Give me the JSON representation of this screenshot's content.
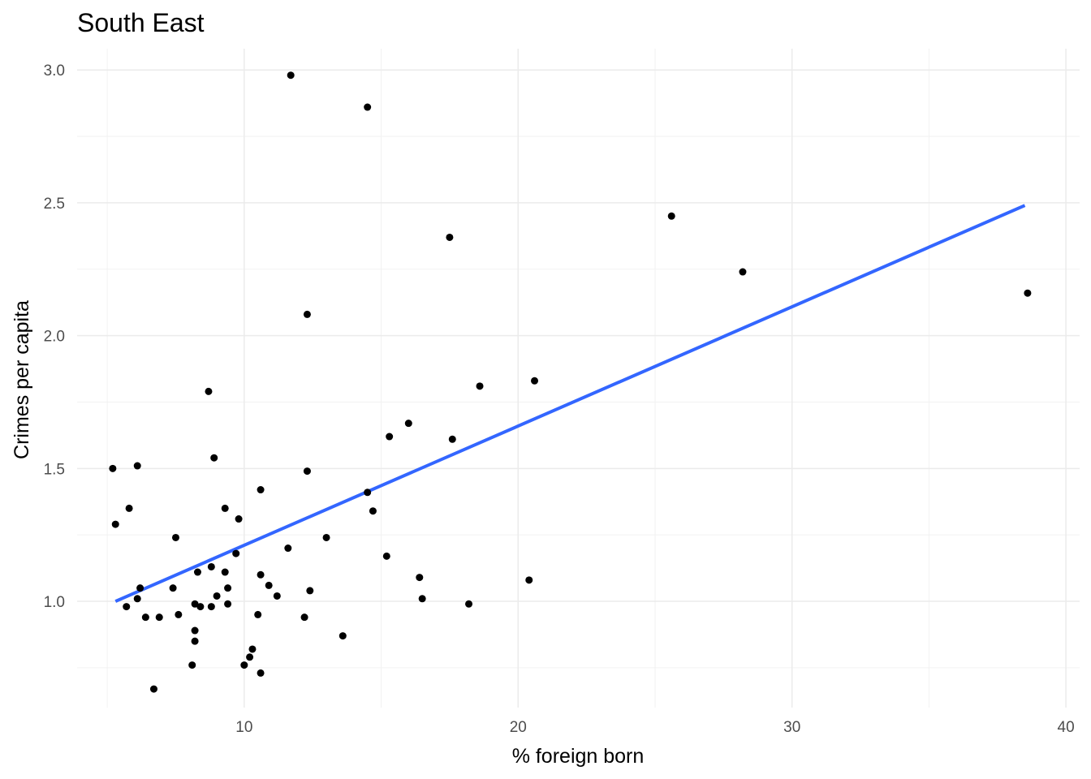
{
  "chart_data": {
    "type": "scatter",
    "title": "South East",
    "xlabel": "% foreign born",
    "ylabel": "Crimes per capita",
    "xlim": [
      3.9,
      40.5
    ],
    "ylim": [
      0.6,
      3.08
    ],
    "x_ticks": [
      10,
      20,
      30,
      40
    ],
    "y_ticks": [
      1.0,
      1.5,
      2.0,
      2.5,
      3.0
    ],
    "x_tick_labels": [
      "10",
      "20",
      "30",
      "40"
    ],
    "y_tick_labels": [
      "1.0",
      "1.5",
      "2.0",
      "2.5",
      "3.0"
    ],
    "grid": true,
    "point_color": "#000000",
    "trend_color": "#3366FF",
    "trend_line": [
      {
        "x": 5.3,
        "y": 1.0
      },
      {
        "x": 38.5,
        "y": 2.49
      }
    ],
    "points": [
      {
        "x": 11.7,
        "y": 2.98
      },
      {
        "x": 14.5,
        "y": 2.86
      },
      {
        "x": 17.5,
        "y": 2.37
      },
      {
        "x": 25.6,
        "y": 2.45
      },
      {
        "x": 28.2,
        "y": 2.24
      },
      {
        "x": 38.6,
        "y": 2.16
      },
      {
        "x": 12.3,
        "y": 2.08
      },
      {
        "x": 18.6,
        "y": 1.81
      },
      {
        "x": 20.6,
        "y": 1.83
      },
      {
        "x": 8.7,
        "y": 1.79
      },
      {
        "x": 16.0,
        "y": 1.67
      },
      {
        "x": 15.3,
        "y": 1.62
      },
      {
        "x": 17.6,
        "y": 1.61
      },
      {
        "x": 8.9,
        "y": 1.54
      },
      {
        "x": 5.2,
        "y": 1.5
      },
      {
        "x": 6.1,
        "y": 1.51
      },
      {
        "x": 12.3,
        "y": 1.49
      },
      {
        "x": 10.6,
        "y": 1.42
      },
      {
        "x": 14.5,
        "y": 1.41
      },
      {
        "x": 5.3,
        "y": 1.29
      },
      {
        "x": 5.8,
        "y": 1.35
      },
      {
        "x": 9.3,
        "y": 1.35
      },
      {
        "x": 14.7,
        "y": 1.34
      },
      {
        "x": 9.8,
        "y": 1.31
      },
      {
        "x": 7.5,
        "y": 1.24
      },
      {
        "x": 13.0,
        "y": 1.24
      },
      {
        "x": 11.6,
        "y": 1.2
      },
      {
        "x": 9.7,
        "y": 1.18
      },
      {
        "x": 15.2,
        "y": 1.17
      },
      {
        "x": 8.8,
        "y": 1.13
      },
      {
        "x": 8.3,
        "y": 1.11
      },
      {
        "x": 9.3,
        "y": 1.11
      },
      {
        "x": 10.6,
        "y": 1.1
      },
      {
        "x": 16.4,
        "y": 1.09
      },
      {
        "x": 20.4,
        "y": 1.08
      },
      {
        "x": 10.9,
        "y": 1.06
      },
      {
        "x": 6.2,
        "y": 1.05
      },
      {
        "x": 7.4,
        "y": 1.05
      },
      {
        "x": 9.4,
        "y": 1.05
      },
      {
        "x": 12.4,
        "y": 1.04
      },
      {
        "x": 11.2,
        "y": 1.02
      },
      {
        "x": 9.0,
        "y": 1.02
      },
      {
        "x": 6.1,
        "y": 1.01
      },
      {
        "x": 16.5,
        "y": 1.01
      },
      {
        "x": 8.2,
        "y": 0.99
      },
      {
        "x": 9.4,
        "y": 0.99
      },
      {
        "x": 18.2,
        "y": 0.99
      },
      {
        "x": 5.7,
        "y": 0.98
      },
      {
        "x": 8.4,
        "y": 0.98
      },
      {
        "x": 8.8,
        "y": 0.98
      },
      {
        "x": 7.6,
        "y": 0.95
      },
      {
        "x": 10.5,
        "y": 0.95
      },
      {
        "x": 6.4,
        "y": 0.94
      },
      {
        "x": 6.9,
        "y": 0.94
      },
      {
        "x": 12.2,
        "y": 0.94
      },
      {
        "x": 8.2,
        "y": 0.89
      },
      {
        "x": 13.6,
        "y": 0.87
      },
      {
        "x": 8.2,
        "y": 0.85
      },
      {
        "x": 10.3,
        "y": 0.82
      },
      {
        "x": 10.2,
        "y": 0.79
      },
      {
        "x": 8.1,
        "y": 0.76
      },
      {
        "x": 10.0,
        "y": 0.76
      },
      {
        "x": 10.6,
        "y": 0.73
      },
      {
        "x": 6.7,
        "y": 0.67
      }
    ]
  }
}
